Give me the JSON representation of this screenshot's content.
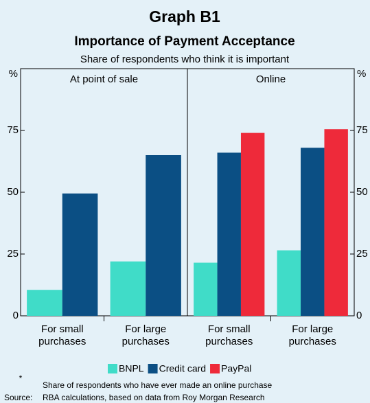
{
  "header": {
    "title": "Graph B1",
    "subtitle": "Importance of Payment Acceptance",
    "description": "Share of respondents who think it is important"
  },
  "chart_data": [
    {
      "type": "bar",
      "title": "At point of sale",
      "y_label": "%",
      "yaxis_side": "left",
      "categories": [
        "For small purchases",
        "For large purchases"
      ],
      "series": [
        {
          "name": "BNPL",
          "color": "#40dcc8",
          "values": [
            10.5,
            22
          ]
        },
        {
          "name": "Credit card",
          "color": "#0b4f84",
          "values": [
            49.5,
            65
          ]
        }
      ],
      "ylim": [
        0,
        100
      ],
      "yticks": [
        0,
        25,
        50,
        75
      ],
      "grid": false
    },
    {
      "type": "bar",
      "title": "Online",
      "y_label": "%",
      "yaxis_side": "right",
      "categories": [
        "For small purchases",
        "For large purchases"
      ],
      "series": [
        {
          "name": "BNPL",
          "color": "#40dcc8",
          "values": [
            21.5,
            26.5
          ]
        },
        {
          "name": "Credit card",
          "color": "#0b4f84",
          "values": [
            66,
            68
          ]
        },
        {
          "name": "PayPal",
          "color": "#ee2a3a",
          "values": [
            74,
            75.5
          ]
        }
      ],
      "ylim": [
        0,
        100
      ],
      "yticks": [
        0,
        25,
        50,
        75
      ],
      "grid": false
    }
  ],
  "notes": {
    "marker": "*",
    "text": "Share of respondents who have ever made an online purchase",
    "source_label": "Source:",
    "source": "RBA calculations, based on data from Roy Morgan Research"
  }
}
